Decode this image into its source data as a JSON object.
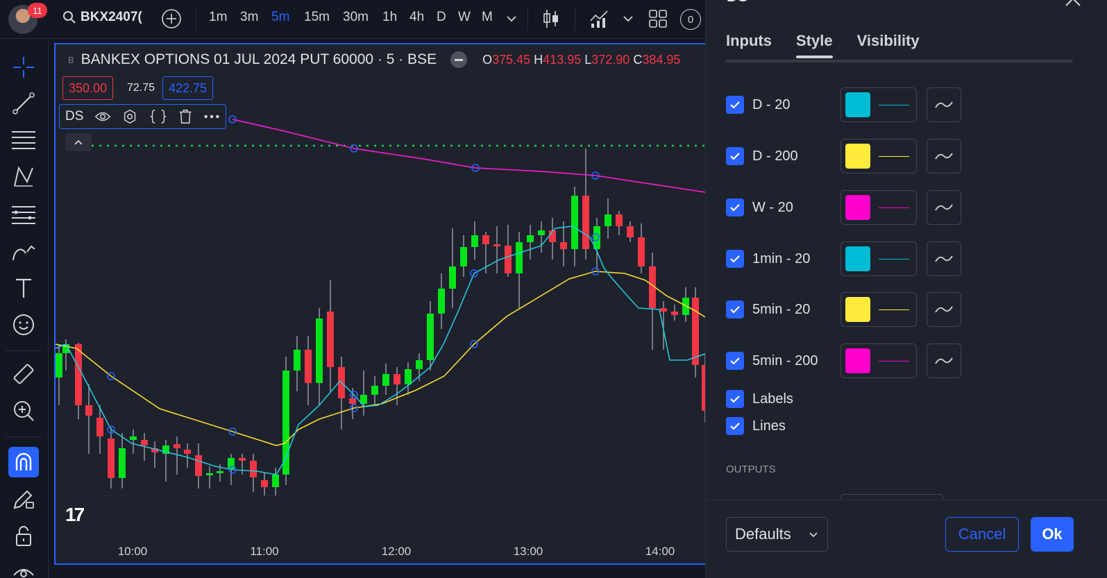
{
  "topbar": {
    "notification_count": "11",
    "symbol": "BKX2407(",
    "timeframes": [
      "1m",
      "3m",
      "5m",
      "15m",
      "30m",
      "1h",
      "4h",
      "D",
      "W",
      "M"
    ],
    "active_timeframe": "5m",
    "alerts_count": "0"
  },
  "chart": {
    "title": "BANKEX OPTIONS 01 JUL 2024 PUT 60000 · 5 · BSE",
    "exchange_badge": "B",
    "ohlc": {
      "o_label": "O",
      "o": "375.45",
      "h_label": "H",
      "h": "413.95",
      "l_label": "L",
      "l": "372.90",
      "c_label": "C",
      "c": "384.95"
    },
    "sell_price": "350.00",
    "spread": "72.75",
    "buy_price": "422.75",
    "indicator_name": "DS",
    "time_labels": [
      "10:00",
      "11:00",
      "12:00",
      "13:00",
      "14:00"
    ],
    "logo": "17"
  },
  "chart_data": {
    "type": "candlestick",
    "x": [
      "10:00",
      "11:00",
      "12:00",
      "13:00",
      "14:00"
    ],
    "colors": {
      "up": "#00e51a",
      "down": "#f23645",
      "series_a": "#26c6da",
      "series_b": "#fbdd33",
      "series_c": "#e91ec6",
      "level": "#1fd34a"
    }
  },
  "dialog": {
    "title": "DS",
    "tabs": [
      "Inputs",
      "Style",
      "Visibility"
    ],
    "active_tab": "Style",
    "rows": [
      {
        "label": "D - 20",
        "color": "#00bcd4"
      },
      {
        "label": "D - 200",
        "color": "#ffeb3b"
      },
      {
        "label": "W - 20",
        "color": "#ff00cc"
      },
      {
        "label": "1min - 20",
        "color": "#00bcd4"
      },
      {
        "label": "5min - 20",
        "color": "#ffeb3b"
      },
      {
        "label": "5min - 200",
        "color": "#ff00cc"
      }
    ],
    "labels_option": "Labels",
    "lines_option": "Lines",
    "outputs_heading": "OUTPUTS",
    "defaults_label": "Defaults",
    "cancel_label": "Cancel",
    "ok_label": "Ok"
  }
}
